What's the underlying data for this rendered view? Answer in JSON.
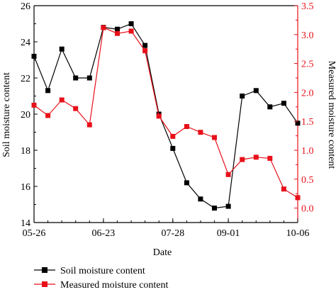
{
  "chart_data": {
    "type": "line",
    "xlabel": "Date",
    "ylabel_left": "Soil moisture content",
    "ylabel_right": "Measured moisture content",
    "x_tick_labels": [
      "05-26",
      "06-23",
      "07-28",
      "09-01",
      "10-06"
    ],
    "y_left_ticks": [
      "14",
      "16",
      "18",
      "20",
      "22",
      "24",
      "26"
    ],
    "y_right_ticks": [
      "0.0",
      "0.5",
      "1.0",
      "1.5",
      "2.0",
      "2.5",
      "3.0",
      "3.5"
    ],
    "ylim_left": [
      14,
      26
    ],
    "ylim_right": [
      -0.25,
      3.5
    ],
    "x": [
      "05-26",
      "06-02",
      "06-09",
      "06-16",
      "06-23",
      "06-30",
      "07-07",
      "07-14",
      "07-21",
      "07-28",
      "08-04",
      "08-11",
      "08-18",
      "08-25",
      "09-01",
      "09-08",
      "09-15",
      "09-22",
      "09-29",
      "10-06"
    ],
    "series": [
      {
        "name": "Soil moisture content",
        "axis": "left",
        "color": "#000000",
        "values": [
          23.2,
          21.3,
          23.6,
          22.0,
          22.0,
          24.8,
          24.7,
          25.0,
          23.8,
          20.0,
          18.1,
          16.2,
          15.3,
          14.8,
          14.9,
          21.0,
          21.3,
          20.4,
          20.6,
          19.5
        ]
      },
      {
        "name": "Measured moisture content",
        "axis": "right",
        "color": "#e8101a",
        "values": [
          1.78,
          1.6,
          1.87,
          1.72,
          1.44,
          3.12,
          3.02,
          3.06,
          2.72,
          1.59,
          1.24,
          1.41,
          1.31,
          1.22,
          0.58,
          0.84,
          0.88,
          0.86,
          0.33,
          0.18
        ]
      }
    ]
  }
}
